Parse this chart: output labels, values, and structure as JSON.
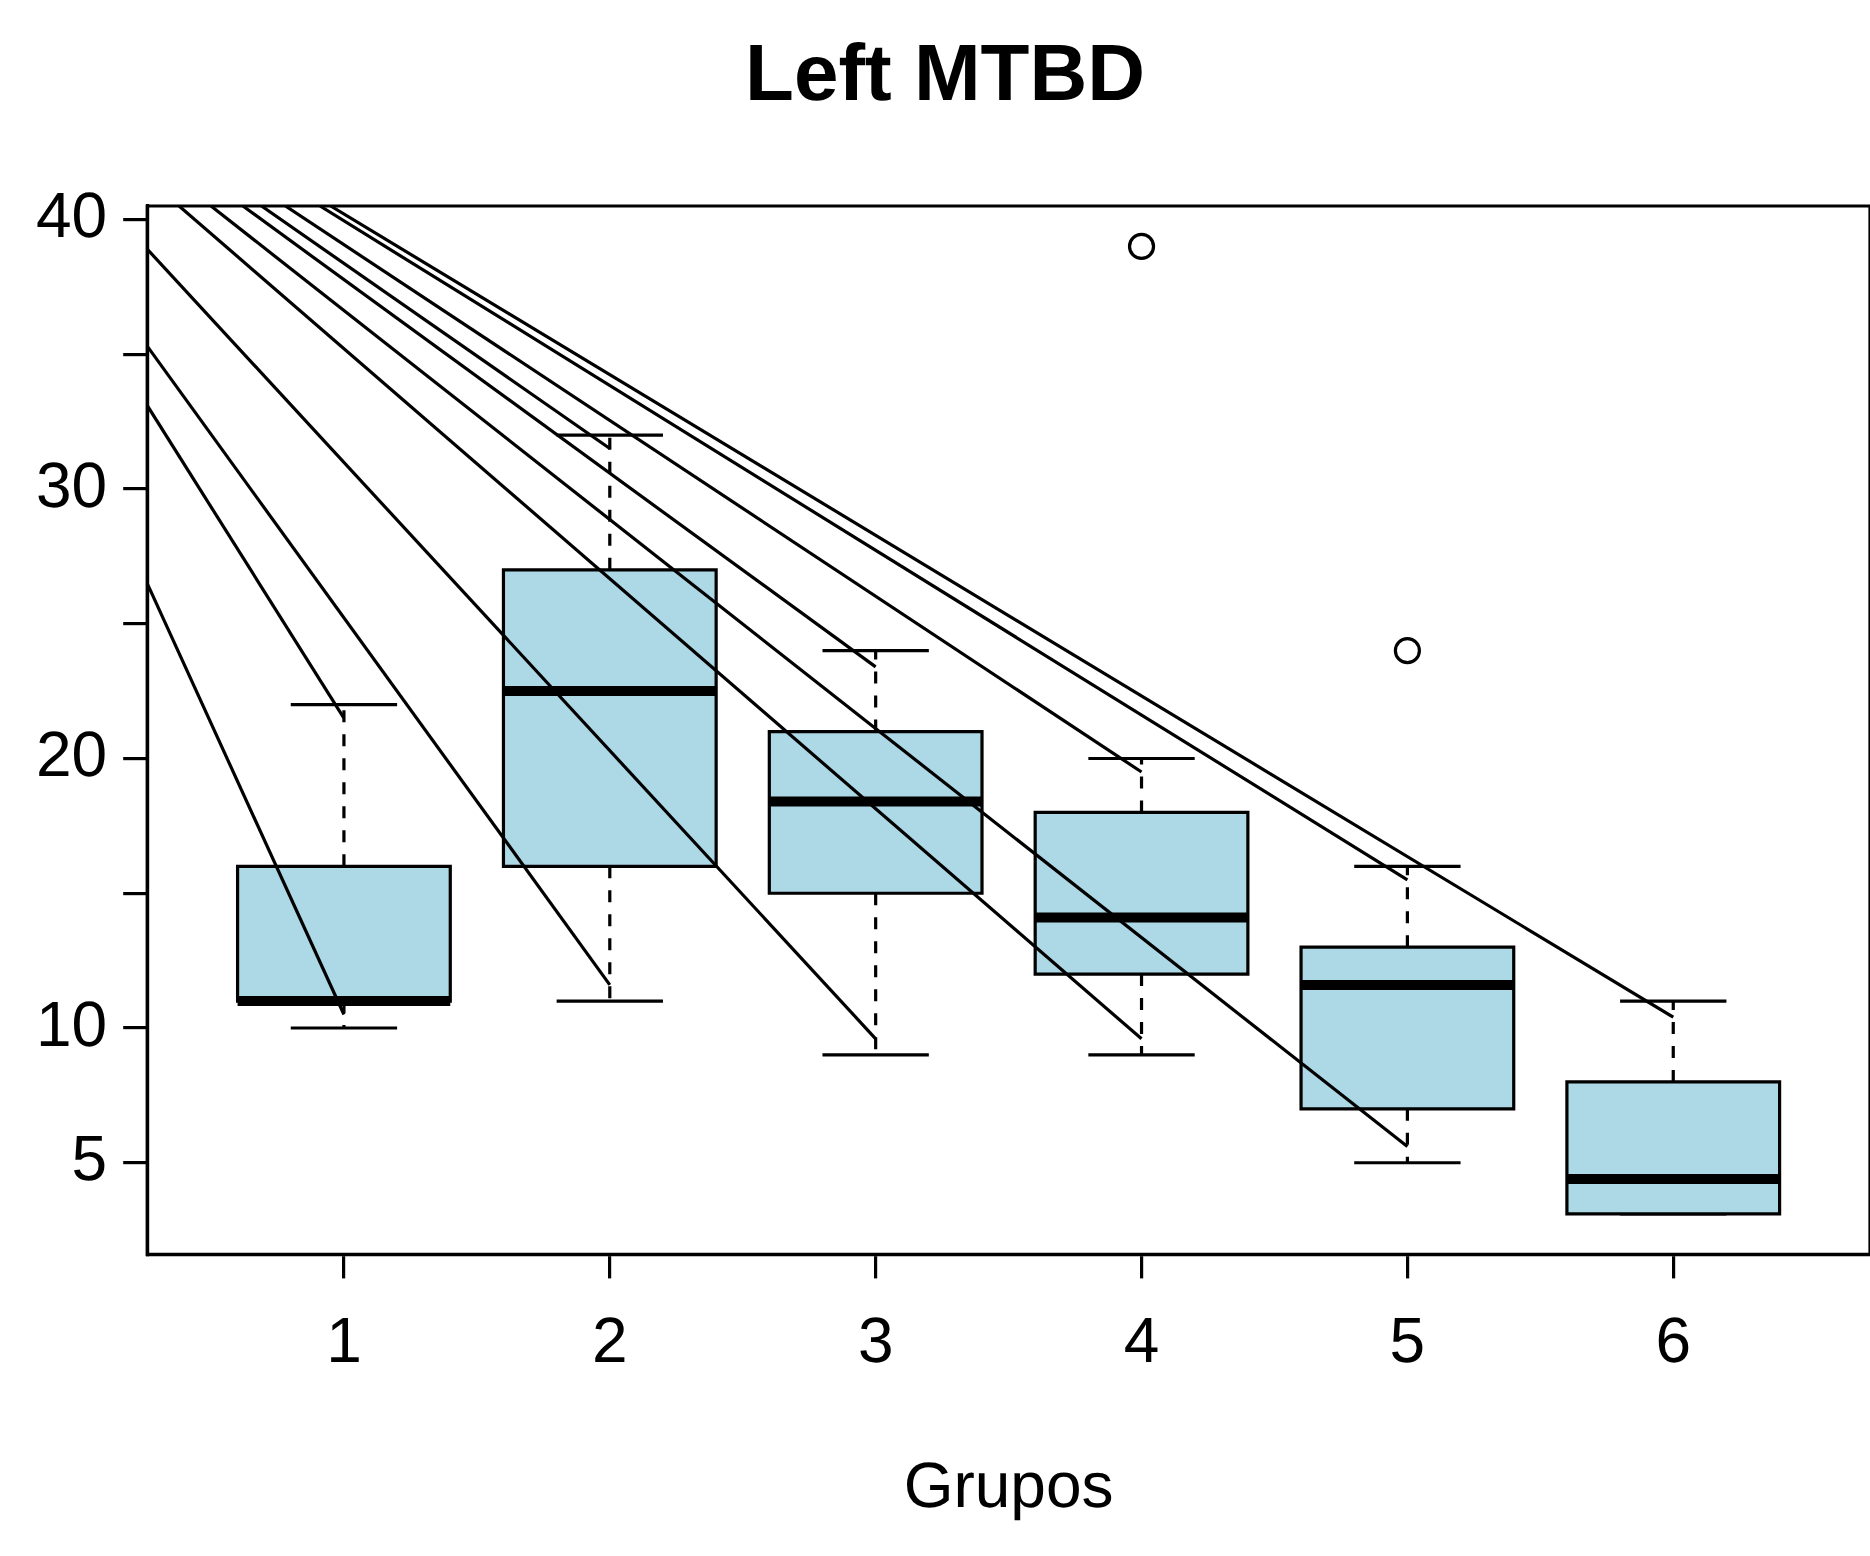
{
  "chart_data": {
    "type": "box",
    "title": "Left MTBD",
    "xlabel": "Grupos",
    "xlim": [
      0.26,
      6.74
    ],
    "xticks": [
      1,
      2,
      3,
      4,
      5,
      6
    ],
    "ylim": [
      1.6,
      40.5
    ],
    "yticks": [
      5,
      10,
      {
        "value": 15,
        "label": null
      },
      20,
      {
        "value": 25,
        "label": null
      },
      30,
      {
        "value": 35,
        "label": null
      },
      40
    ],
    "grid": false,
    "series": [
      {
        "color": "#add8e6",
        "x": [
          1,
          2,
          3,
          4,
          5,
          6
        ],
        "boxes": [
          {
            "low": 10,
            "q1": 11,
            "median": 11,
            "q3": 16,
            "high": 22
          },
          {
            "low": 11,
            "q1": 16,
            "median": 22.5,
            "q3": 27,
            "high": 32
          },
          {
            "low": 9,
            "q1": 15,
            "median": 18.4,
            "q3": 21,
            "high": 24
          },
          {
            "low": 9,
            "q1": 12,
            "median": 14.1,
            "q3": 18,
            "high": 20,
            "outliers": [
              39
            ]
          },
          {
            "low": 5,
            "q1": 7,
            "median": 11.6,
            "q3": 13,
            "high": 16,
            "outliers": [
              24
            ]
          },
          {
            "low": 3.1,
            "q1": 3.1,
            "median": 4.4,
            "q3": 8,
            "high": 11
          }
        ]
      },
      {
        "type": "line",
        "color": "#000000",
        "x": [
          0.26,
          1
        ],
        "values": [
          26.5,
          10.5
        ]
      },
      {
        "type": "line",
        "color": "#000000",
        "x": [
          0.26,
          1
        ],
        "values": [
          33.1,
          21.5
        ]
      },
      {
        "type": "line",
        "color": "#000000",
        "x": [
          0.26,
          2
        ],
        "values": [
          35.3,
          11.6
        ]
      },
      {
        "type": "line",
        "color": "#000000",
        "x": [
          0.26,
          3
        ],
        "values": [
          38.9,
          9.6
        ]
      },
      {
        "type": "line",
        "color": "#000000",
        "x": [
          0.38,
          4
        ],
        "values": [
          40.5,
          9.6
        ]
      },
      {
        "type": "line",
        "color": "#000000",
        "x": [
          0.5,
          5
        ],
        "values": [
          40.5,
          5.6
        ]
      },
      {
        "type": "line",
        "color": "#000000",
        "x": [
          0.62,
          3
        ],
        "values": [
          40.5,
          23.4
        ]
      },
      {
        "type": "line",
        "color": "#000000",
        "x": [
          0.69,
          2
        ],
        "values": [
          40.5,
          31.5
        ]
      },
      {
        "type": "line",
        "color": "#000000",
        "x": [
          0.78,
          4
        ],
        "values": [
          40.5,
          19.5
        ]
      },
      {
        "type": "line",
        "color": "#000000",
        "x": [
          0.91,
          5
        ],
        "values": [
          40.5,
          15.5
        ]
      },
      {
        "type": "line",
        "color": "#000000",
        "x": [
          0.95,
          6
        ],
        "values": [
          40.5,
          10.4
        ]
      }
    ]
  }
}
